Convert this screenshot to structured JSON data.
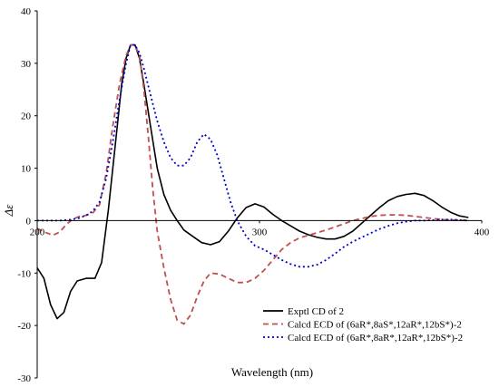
{
  "chart_data": {
    "type": "line",
    "title": "",
    "xlabel": "Wavelength (nm)",
    "ylabel": "Δε",
    "xlim": [
      200,
      400
    ],
    "ylim": [
      -30,
      40
    ],
    "x_ticks": [
      200,
      300,
      400
    ],
    "y_ticks": [
      -30,
      -20,
      -10,
      0,
      10,
      20,
      30,
      40
    ],
    "grid": false,
    "legend_position": "bottom-right",
    "series": [
      {
        "key": "exptl",
        "name": "Exptl CD of 2",
        "color": "#000000",
        "dash": "",
        "points": [
          [
            200,
            -9
          ],
          [
            203,
            -11
          ],
          [
            206,
            -16
          ],
          [
            209,
            -18.7
          ],
          [
            212,
            -17.5
          ],
          [
            215,
            -13.5
          ],
          [
            218,
            -11.5
          ],
          [
            222,
            -11
          ],
          [
            226,
            -11
          ],
          [
            229,
            -8
          ],
          [
            232,
            2
          ],
          [
            235,
            14
          ],
          [
            238,
            26
          ],
          [
            240,
            31
          ],
          [
            242,
            33.5
          ],
          [
            244,
            33.5
          ],
          [
            246,
            31
          ],
          [
            248,
            26
          ],
          [
            251,
            18
          ],
          [
            254,
            10
          ],
          [
            257,
            5
          ],
          [
            260,
            2
          ],
          [
            263,
            0
          ],
          [
            266,
            -1.8
          ],
          [
            270,
            -3
          ],
          [
            274,
            -4.2
          ],
          [
            278,
            -4.6
          ],
          [
            282,
            -4
          ],
          [
            286,
            -2
          ],
          [
            290,
            0.5
          ],
          [
            294,
            2.5
          ],
          [
            298,
            3.2
          ],
          [
            302,
            2.6
          ],
          [
            306,
            1.2
          ],
          [
            310,
            0
          ],
          [
            314,
            -1
          ],
          [
            318,
            -2
          ],
          [
            322,
            -2.7
          ],
          [
            326,
            -3.2
          ],
          [
            330,
            -3.5
          ],
          [
            334,
            -3.5
          ],
          [
            338,
            -3
          ],
          [
            342,
            -2
          ],
          [
            346,
            -0.5
          ],
          [
            350,
            1
          ],
          [
            354,
            2.5
          ],
          [
            358,
            3.8
          ],
          [
            362,
            4.6
          ],
          [
            366,
            5
          ],
          [
            370,
            5.2
          ],
          [
            374,
            4.8
          ],
          [
            378,
            3.8
          ],
          [
            382,
            2.6
          ],
          [
            386,
            1.6
          ],
          [
            390,
            0.9
          ],
          [
            394,
            0.6
          ]
        ]
      },
      {
        "key": "calcd_s",
        "name": "Calcd ECD of (6aR*,8aS*,12aR*,12bS*)-2",
        "color": "#c0504d",
        "dash": "6,4",
        "points": [
          [
            200,
            -1.5
          ],
          [
            204,
            -2.3
          ],
          [
            207,
            -2.8
          ],
          [
            210,
            -2.2
          ],
          [
            213,
            -0.8
          ],
          [
            216,
            0.3
          ],
          [
            219,
            0.8
          ],
          [
            222,
            1
          ],
          [
            225,
            1.5
          ],
          [
            228,
            3
          ],
          [
            231,
            9
          ],
          [
            234,
            18
          ],
          [
            237,
            26
          ],
          [
            240,
            31.5
          ],
          [
            242,
            33.5
          ],
          [
            244,
            33.5
          ],
          [
            246,
            31.5
          ],
          [
            248,
            25
          ],
          [
            250,
            16
          ],
          [
            252,
            6
          ],
          [
            254,
            -2
          ],
          [
            257,
            -9
          ],
          [
            260,
            -15
          ],
          [
            263,
            -19
          ],
          [
            266,
            -19.7
          ],
          [
            269,
            -18
          ],
          [
            272,
            -14.5
          ],
          [
            275,
            -11.5
          ],
          [
            278,
            -10
          ],
          [
            282,
            -10.2
          ],
          [
            286,
            -11
          ],
          [
            290,
            -11.8
          ],
          [
            294,
            -11.8
          ],
          [
            298,
            -11
          ],
          [
            302,
            -9.5
          ],
          [
            306,
            -7.5
          ],
          [
            310,
            -5.5
          ],
          [
            314,
            -4.2
          ],
          [
            318,
            -3.3
          ],
          [
            322,
            -2.8
          ],
          [
            326,
            -2.3
          ],
          [
            330,
            -1.8
          ],
          [
            334,
            -1.2
          ],
          [
            338,
            -0.6
          ],
          [
            342,
            0
          ],
          [
            346,
            0.4
          ],
          [
            350,
            0.8
          ],
          [
            354,
            1
          ],
          [
            358,
            1.1
          ],
          [
            362,
            1.1
          ],
          [
            366,
            1
          ],
          [
            370,
            0.8
          ],
          [
            374,
            0.6
          ],
          [
            378,
            0.4
          ],
          [
            382,
            0.2
          ],
          [
            386,
            0.1
          ],
          [
            390,
            0.1
          ],
          [
            394,
            0
          ]
        ]
      },
      {
        "key": "calcd_r",
        "name": "Calcd ECD of (6aR*,8aR*,12aR*,12bS*)-2",
        "color": "#0000cc",
        "dash": "2,3",
        "points": [
          [
            200,
            0
          ],
          [
            205,
            0
          ],
          [
            210,
            0
          ],
          [
            215,
            0.2
          ],
          [
            219,
            0.5
          ],
          [
            222,
            1
          ],
          [
            225,
            1.8
          ],
          [
            228,
            3.5
          ],
          [
            231,
            8
          ],
          [
            234,
            15
          ],
          [
            237,
            23
          ],
          [
            240,
            30
          ],
          [
            242,
            33.5
          ],
          [
            244,
            33.5
          ],
          [
            246,
            32
          ],
          [
            248,
            29
          ],
          [
            251,
            24
          ],
          [
            254,
            19
          ],
          [
            257,
            15
          ],
          [
            260,
            12
          ],
          [
            263,
            10.5
          ],
          [
            266,
            10.5
          ],
          [
            269,
            12
          ],
          [
            272,
            15
          ],
          [
            275,
            16.5
          ],
          [
            278,
            15.5
          ],
          [
            281,
            12.5
          ],
          [
            284,
            8
          ],
          [
            287,
            3.5
          ],
          [
            290,
            0
          ],
          [
            294,
            -3
          ],
          [
            298,
            -4.8
          ],
          [
            302,
            -5.5
          ],
          [
            306,
            -6.5
          ],
          [
            310,
            -7.5
          ],
          [
            314,
            -8.3
          ],
          [
            318,
            -8.8
          ],
          [
            322,
            -8.8
          ],
          [
            326,
            -8.4
          ],
          [
            330,
            -7.5
          ],
          [
            334,
            -6.3
          ],
          [
            338,
            -5
          ],
          [
            342,
            -4
          ],
          [
            346,
            -3.2
          ],
          [
            350,
            -2.4
          ],
          [
            354,
            -1.6
          ],
          [
            358,
            -1
          ],
          [
            362,
            -0.5
          ],
          [
            366,
            -0.2
          ],
          [
            370,
            0
          ],
          [
            374,
            0
          ],
          [
            378,
            0.1
          ],
          [
            382,
            0.2
          ],
          [
            386,
            0.2
          ],
          [
            390,
            0.1
          ],
          [
            394,
            0
          ]
        ]
      }
    ]
  },
  "legend": [
    {
      "key": "exptl",
      "label": "Exptl CD of 2"
    },
    {
      "key": "calcd_s",
      "label": "Calcd ECD of (6aR*,8aS*,12aR*,12bS*)-2"
    },
    {
      "key": "calcd_r",
      "label": "Calcd ECD of (6aR*,8aR*,12aR*,12bS*)-2"
    }
  ]
}
